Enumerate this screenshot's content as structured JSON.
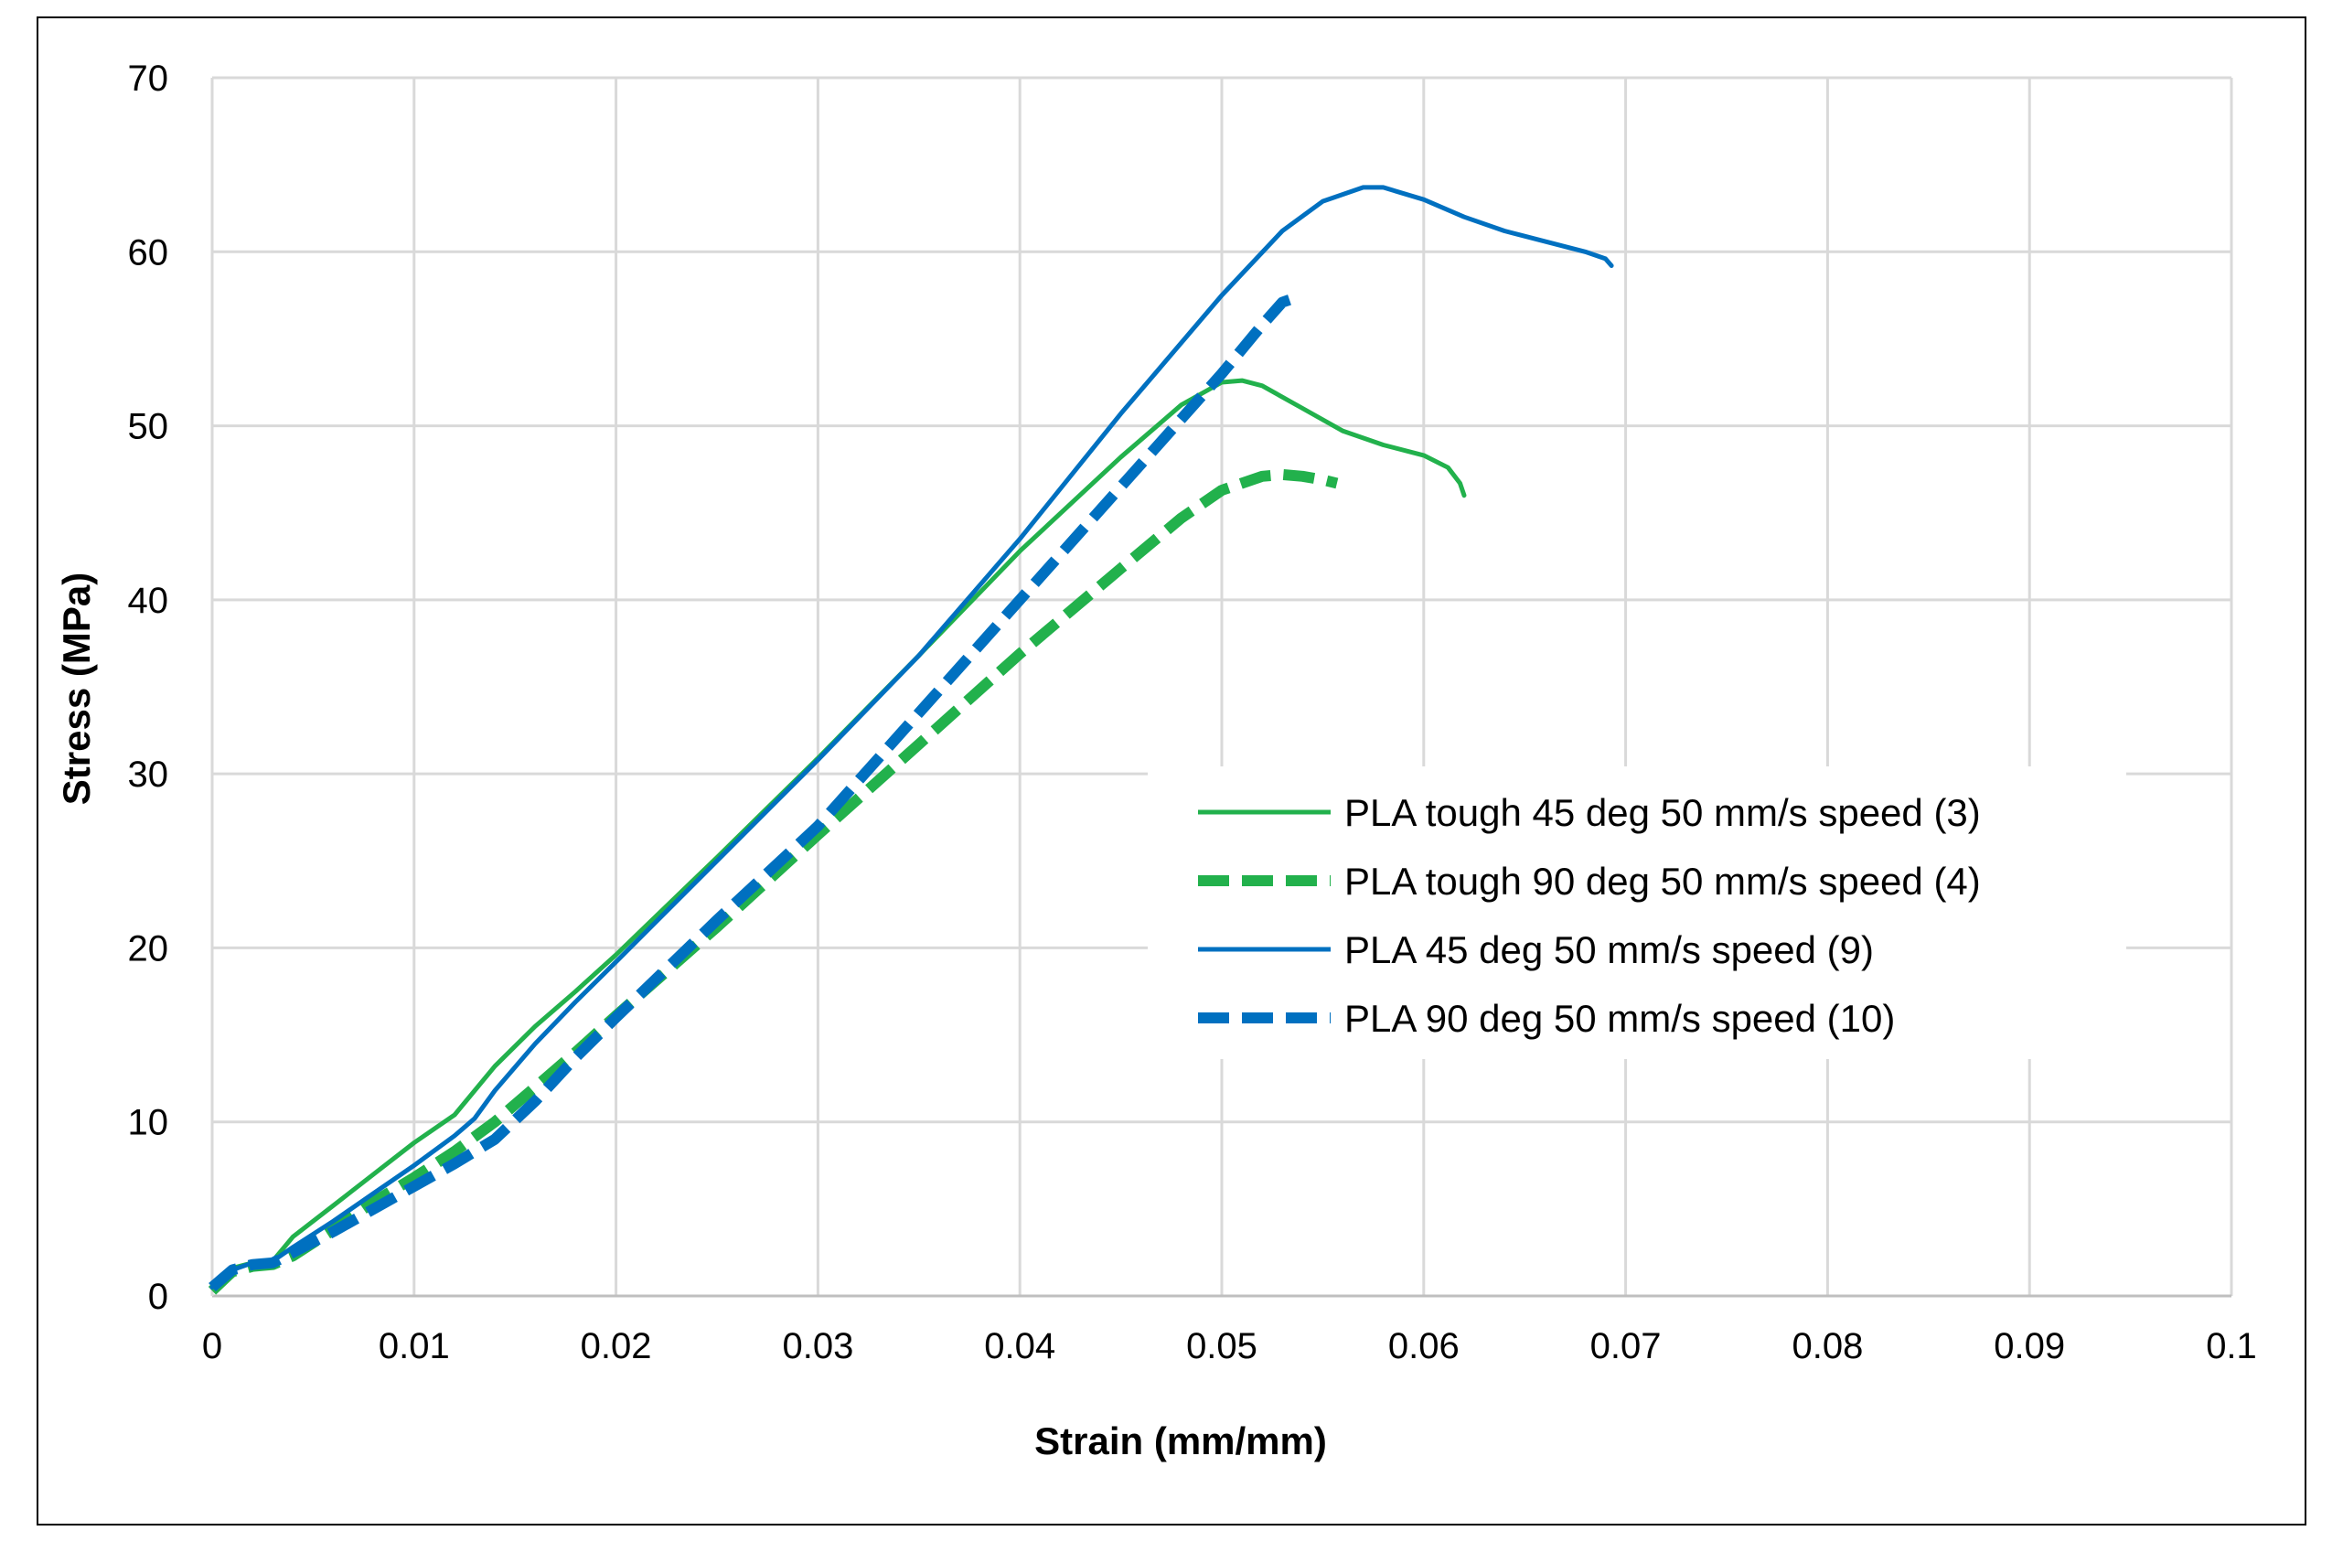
{
  "chart_data": {
    "type": "line",
    "title": "",
    "xlabel": "Strain (mm/mm)",
    "ylabel": "Stress (MPa)",
    "xlim": [
      0,
      0.1
    ],
    "ylim": [
      0,
      70
    ],
    "xticks": [
      0,
      0.01,
      0.02,
      0.03,
      0.04,
      0.05,
      0.06,
      0.07,
      0.08,
      0.09,
      0.1
    ],
    "xtick_labels": [
      "0",
      "0.01",
      "0.02",
      "0.03",
      "0.04",
      "0.05",
      "0.06",
      "0.07",
      "0.08",
      "0.09",
      "0.1"
    ],
    "yticks": [
      0,
      10,
      20,
      30,
      40,
      50,
      60,
      70
    ],
    "ytick_labels": [
      "0",
      "10",
      "20",
      "30",
      "40",
      "50",
      "60",
      "70"
    ],
    "grid": true,
    "legend_position": "center-right",
    "series": [
      {
        "name": "PLA tough 45 deg 50 mm/s speed (3)",
        "color": "#22b14c",
        "dash": "solid",
        "points": [
          [
            0,
            0.5
          ],
          [
            0.001,
            1.6
          ],
          [
            0.002,
            1.9
          ],
          [
            0.003,
            2.0
          ],
          [
            0.004,
            3.4
          ],
          [
            0.006,
            5.2
          ],
          [
            0.008,
            7.0
          ],
          [
            0.01,
            8.8
          ],
          [
            0.012,
            10.4
          ],
          [
            0.014,
            13.2
          ],
          [
            0.016,
            15.5
          ],
          [
            0.018,
            17.5
          ],
          [
            0.02,
            19.6
          ],
          [
            0.025,
            25.2
          ],
          [
            0.03,
            30.9
          ],
          [
            0.035,
            36.8
          ],
          [
            0.04,
            42.8
          ],
          [
            0.045,
            48.2
          ],
          [
            0.048,
            51.2
          ],
          [
            0.05,
            52.5
          ],
          [
            0.051,
            52.6
          ],
          [
            0.052,
            52.3
          ],
          [
            0.054,
            51.0
          ],
          [
            0.056,
            49.7
          ],
          [
            0.058,
            48.9
          ],
          [
            0.06,
            48.3
          ],
          [
            0.0612,
            47.6
          ],
          [
            0.0618,
            46.7
          ],
          [
            0.062,
            46.0
          ]
        ]
      },
      {
        "name": "PLA tough 90 deg 50 mm/s speed (4)",
        "color": "#22b14c",
        "dash": "dashed",
        "points": [
          [
            0,
            0.3
          ],
          [
            0.001,
            1.4
          ],
          [
            0.002,
            1.7
          ],
          [
            0.003,
            1.8
          ],
          [
            0.004,
            2.3
          ],
          [
            0.006,
            3.8
          ],
          [
            0.008,
            5.4
          ],
          [
            0.01,
            6.8
          ],
          [
            0.012,
            8.3
          ],
          [
            0.014,
            10.0
          ],
          [
            0.016,
            12.0
          ],
          [
            0.018,
            14.0
          ],
          [
            0.02,
            16.1
          ],
          [
            0.025,
            21.2
          ],
          [
            0.03,
            26.5
          ],
          [
            0.035,
            31.7
          ],
          [
            0.04,
            36.9
          ],
          [
            0.045,
            41.8
          ],
          [
            0.048,
            44.7
          ],
          [
            0.05,
            46.3
          ],
          [
            0.052,
            47.1
          ],
          [
            0.053,
            47.2
          ],
          [
            0.054,
            47.1
          ],
          [
            0.055,
            46.9
          ],
          [
            0.0557,
            46.7
          ]
        ]
      },
      {
        "name": "PLA 45 deg 50 mm/s speed (9)",
        "color": "#0070c0",
        "dash": "solid",
        "points": [
          [
            0,
            0.5
          ],
          [
            0.001,
            1.5
          ],
          [
            0.002,
            1.9
          ],
          [
            0.003,
            2.0
          ],
          [
            0.004,
            2.8
          ],
          [
            0.006,
            4.3
          ],
          [
            0.008,
            5.9
          ],
          [
            0.01,
            7.5
          ],
          [
            0.012,
            9.2
          ],
          [
            0.013,
            10.2
          ],
          [
            0.014,
            11.8
          ],
          [
            0.016,
            14.5
          ],
          [
            0.018,
            16.9
          ],
          [
            0.02,
            19.2
          ],
          [
            0.025,
            25.0
          ],
          [
            0.03,
            30.8
          ],
          [
            0.035,
            36.8
          ],
          [
            0.04,
            43.5
          ],
          [
            0.045,
            50.7
          ],
          [
            0.05,
            57.5
          ],
          [
            0.053,
            61.2
          ],
          [
            0.055,
            62.9
          ],
          [
            0.057,
            63.7
          ],
          [
            0.058,
            63.7
          ],
          [
            0.06,
            63.0
          ],
          [
            0.062,
            62.0
          ],
          [
            0.064,
            61.2
          ],
          [
            0.066,
            60.6
          ],
          [
            0.068,
            60.0
          ],
          [
            0.069,
            59.6
          ],
          [
            0.0693,
            59.2
          ]
        ]
      },
      {
        "name": "PLA 90 deg 50 mm/s speed (10)",
        "color": "#0070c0",
        "dash": "dashed",
        "points": [
          [
            0,
            0.5
          ],
          [
            0.001,
            1.5
          ],
          [
            0.002,
            1.8
          ],
          [
            0.003,
            1.9
          ],
          [
            0.004,
            2.5
          ],
          [
            0.006,
            3.7
          ],
          [
            0.008,
            5.0
          ],
          [
            0.01,
            6.3
          ],
          [
            0.012,
            7.6
          ],
          [
            0.014,
            9.0
          ],
          [
            0.016,
            11.2
          ],
          [
            0.018,
            13.7
          ],
          [
            0.02,
            16.0
          ],
          [
            0.025,
            21.6
          ],
          [
            0.03,
            27.0
          ],
          [
            0.035,
            33.5
          ],
          [
            0.04,
            40.0
          ],
          [
            0.045,
            46.5
          ],
          [
            0.05,
            53.0
          ],
          [
            0.052,
            55.8
          ],
          [
            0.053,
            57.1
          ],
          [
            0.0535,
            57.3
          ]
        ]
      }
    ]
  }
}
